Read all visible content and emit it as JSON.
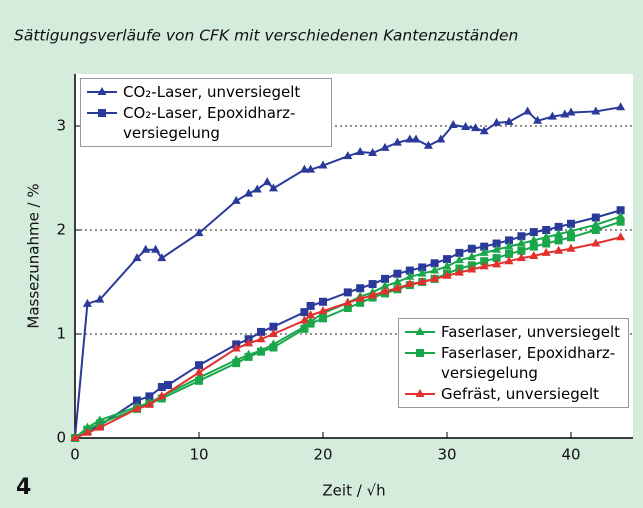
{
  "chart_data": {
    "type": "line",
    "title": "Sättigungsverläufe von CFK mit verschiedenen Kantenzuständen",
    "figure_label": "4",
    "x_label": "Zeit / √h",
    "y_label": "Massezunahme / %",
    "xlim": [
      0,
      45
    ],
    "ylim": [
      0,
      3.5
    ],
    "xticks": [
      0,
      10,
      20,
      30,
      40
    ],
    "yticks": [
      0,
      1,
      2,
      3
    ],
    "grid_lines": [
      1,
      2,
      3
    ],
    "series": [
      {
        "name": "CO₂-Laser, unversiegelt",
        "color": "#2b3a9a",
        "marker": "triangle",
        "legend": "top-left",
        "x": [
          0,
          1,
          2,
          5,
          5.7,
          6.5,
          7,
          10,
          13,
          14,
          14.7,
          15.5,
          16,
          18.5,
          19,
          20,
          22,
          23,
          24,
          25,
          26,
          27,
          27.5,
          28.5,
          29.5,
          30.5,
          31.5,
          32.3,
          33,
          34,
          35,
          36.5,
          37.3,
          38.5,
          39.5,
          40,
          42,
          44
        ],
        "values": [
          0,
          1.29,
          1.33,
          1.73,
          1.81,
          1.81,
          1.73,
          1.97,
          2.28,
          2.35,
          2.39,
          2.46,
          2.4,
          2.58,
          2.58,
          2.62,
          2.71,
          2.75,
          2.74,
          2.79,
          2.84,
          2.87,
          2.87,
          2.81,
          2.87,
          3.01,
          2.99,
          2.98,
          2.95,
          3.03,
          3.04,
          3.14,
          3.05,
          3.09,
          3.11,
          3.13,
          3.14,
          3.18
        ]
      },
      {
        "name": "CO₂-Laser, Epoxidharz-\nversiegelung",
        "color": "#2b3a9a",
        "marker": "square",
        "legend": "top-left",
        "x": [
          0,
          1,
          2,
          5,
          6,
          7,
          7.5,
          10,
          13,
          14,
          15,
          16,
          18.5,
          19,
          20,
          22,
          23,
          24,
          25,
          26,
          27,
          28,
          29,
          30,
          31,
          32,
          33,
          34,
          35,
          36,
          37,
          38,
          39,
          40,
          42,
          44
        ],
        "values": [
          0,
          0.07,
          0.12,
          0.36,
          0.4,
          0.49,
          0.51,
          0.7,
          0.9,
          0.95,
          1.02,
          1.07,
          1.21,
          1.27,
          1.31,
          1.4,
          1.44,
          1.48,
          1.53,
          1.58,
          1.61,
          1.64,
          1.68,
          1.72,
          1.78,
          1.82,
          1.84,
          1.87,
          1.9,
          1.94,
          1.98,
          2.0,
          2.03,
          2.06,
          2.12,
          2.19
        ]
      },
      {
        "name": "Faserlaser, unversiegelt",
        "color": "#1aa64b",
        "marker": "triangle",
        "legend": "bottom-right",
        "x": [
          0,
          1,
          2,
          5,
          6,
          7,
          10,
          13,
          14,
          15,
          16,
          18.5,
          19,
          20,
          22,
          23,
          24,
          25,
          26,
          27,
          28,
          29,
          30,
          31,
          32,
          33,
          34,
          35,
          36,
          37,
          38,
          39,
          40,
          42,
          44
        ],
        "values": [
          0,
          0.1,
          0.17,
          0.3,
          0.34,
          0.4,
          0.58,
          0.75,
          0.8,
          0.84,
          0.9,
          1.07,
          1.12,
          1.2,
          1.3,
          1.36,
          1.4,
          1.46,
          1.5,
          1.55,
          1.58,
          1.61,
          1.65,
          1.71,
          1.74,
          1.78,
          1.81,
          1.84,
          1.87,
          1.9,
          1.93,
          1.96,
          1.99,
          2.05,
          2.13
        ]
      },
      {
        "name": "Faserlaser, Epoxidharz-\nversiegelung",
        "color": "#1aa64b",
        "marker": "square",
        "legend": "bottom-right",
        "x": [
          0,
          1,
          2,
          5,
          6,
          7,
          10,
          13,
          14,
          15,
          16,
          18.5,
          19,
          20,
          22,
          23,
          24,
          25,
          26,
          27,
          28,
          29,
          30,
          31,
          32,
          33,
          34,
          35,
          36,
          37,
          38,
          39,
          40,
          42,
          44
        ],
        "values": [
          0,
          0.08,
          0.14,
          0.28,
          0.33,
          0.38,
          0.55,
          0.72,
          0.78,
          0.83,
          0.87,
          1.05,
          1.1,
          1.15,
          1.25,
          1.3,
          1.35,
          1.39,
          1.43,
          1.47,
          1.5,
          1.53,
          1.58,
          1.63,
          1.66,
          1.7,
          1.73,
          1.77,
          1.8,
          1.84,
          1.87,
          1.9,
          1.93,
          2.0,
          2.08
        ]
      },
      {
        "name": "Gefräst, unversiegelt",
        "color": "#e2302e",
        "marker": "triangle",
        "legend": "bottom-right",
        "x": [
          0,
          1,
          2,
          5,
          6,
          7,
          10,
          13,
          14,
          15,
          16,
          18.5,
          19,
          20,
          22,
          23,
          24,
          25,
          26,
          27,
          28,
          29,
          30,
          31,
          32,
          33,
          34,
          35,
          36,
          37,
          38,
          39,
          40,
          42,
          44
        ],
        "values": [
          0,
          0.05,
          0.1,
          0.28,
          0.32,
          0.4,
          0.63,
          0.86,
          0.91,
          0.95,
          1.0,
          1.13,
          1.18,
          1.22,
          1.3,
          1.34,
          1.37,
          1.41,
          1.44,
          1.48,
          1.5,
          1.53,
          1.56,
          1.59,
          1.62,
          1.65,
          1.67,
          1.7,
          1.73,
          1.75,
          1.78,
          1.8,
          1.82,
          1.87,
          1.93
        ]
      }
    ]
  }
}
